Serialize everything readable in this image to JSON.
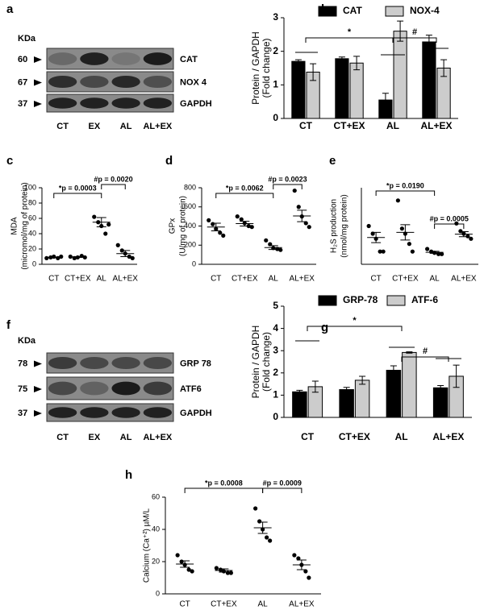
{
  "blots": [
    {
      "panel": "a",
      "kda": "KDa",
      "markers": [
        "60",
        "67",
        "37"
      ],
      "proteins": [
        "CAT",
        "NOX 4",
        "GAPDH"
      ],
      "lanes": [
        "CT",
        "EX",
        "AL",
        "AL+EX"
      ]
    },
    {
      "panel": "f",
      "kda": "KDa",
      "markers": [
        "78",
        "75",
        "37"
      ],
      "proteins": [
        "GRP 78",
        "ATF6",
        "GAPDH"
      ],
      "lanes": [
        "CT",
        "EX",
        "AL",
        "AL+EX"
      ]
    }
  ],
  "chart_data": [
    {
      "type": "bar",
      "panel": "b",
      "ylabel": [
        "Protein / GAPDH",
        "(Fold change)"
      ],
      "categories": [
        "CT",
        "CT+EX",
        "AL",
        "AL+EX"
      ],
      "series": [
        {
          "name": "CAT",
          "color": "#000000",
          "values": [
            1.7,
            1.78,
            0.55,
            2.28
          ],
          "errors": [
            0.05,
            0.05,
            0.2,
            0.2
          ]
        },
        {
          "name": "NOX-4",
          "color": "#cccccc",
          "values": [
            1.38,
            1.65,
            2.6,
            1.5
          ],
          "errors": [
            0.25,
            0.2,
            0.3,
            0.25
          ]
        }
      ],
      "ylim": [
        0,
        3
      ],
      "yticks": [
        0,
        1,
        2,
        3
      ],
      "annotations": [
        "*",
        "#"
      ]
    },
    {
      "type": "scatter",
      "panel": "c",
      "ylabel": [
        "MDA",
        "(micromol/mg of protein)"
      ],
      "categories": [
        "CT",
        "CT+EX",
        "AL",
        "AL+EX"
      ],
      "points": [
        [
          8,
          9,
          10,
          8,
          10
        ],
        [
          10,
          8,
          9,
          11,
          9
        ],
        [
          62,
          55,
          50,
          40,
          52
        ],
        [
          25,
          18,
          14,
          10,
          8
        ]
      ],
      "means": [
        9,
        9.5,
        55,
        14
      ],
      "sems": [
        0.5,
        0.5,
        6,
        4
      ],
      "ylim": [
        0,
        100
      ],
      "yticks": [
        0,
        20,
        40,
        60,
        80,
        100
      ],
      "annotations": [
        "*p = 0.0003",
        "#p = 0.0020"
      ]
    },
    {
      "type": "scatter",
      "panel": "d",
      "ylabel": [
        "GPx",
        "(U/mg of protein)"
      ],
      "categories": [
        "CT",
        "CT+EX",
        "AL",
        "AL+EX"
      ],
      "points": [
        [
          460,
          420,
          370,
          330,
          300
        ],
        [
          500,
          470,
          430,
          400,
          390
        ],
        [
          250,
          210,
          170,
          160,
          150
        ],
        [
          770,
          600,
          500,
          430,
          390
        ]
      ],
      "means": [
        390,
        425,
        175,
        505
      ],
      "sems": [
        40,
        25,
        20,
        60
      ],
      "ylim": [
        0,
        800
      ],
      "yticks": [
        0,
        200,
        400,
        600,
        800
      ],
      "annotations": [
        "*p = 0.0062",
        "#p = 0.0023"
      ]
    },
    {
      "type": "scatter",
      "panel": "e",
      "ylabel": [
        "H₂S production",
        "(nmol/mg protein)"
      ],
      "categories": [
        "CT",
        "CT+EX",
        "AL",
        "AL+EX"
      ],
      "points": [
        [
          15,
          12,
          10,
          5,
          5
        ],
        [
          25,
          14,
          12,
          8,
          5
        ],
        [
          6,
          5,
          4.5,
          4,
          4
        ],
        [
          16,
          13,
          12,
          11,
          10
        ]
      ],
      "means": [
        10.5,
        12.5,
        4.7,
        11.8
      ],
      "sems": [
        2,
        3,
        0.4,
        1
      ],
      "ylim": [
        0,
        30
      ],
      "annotations": [
        "*p = 0.0190",
        "#p = 0.0005"
      ]
    },
    {
      "type": "bar",
      "panel": "g",
      "ylabel": [
        "Protein / GAPDH",
        "(Fold change)"
      ],
      "categories": [
        "CT",
        "CT+EX",
        "AL",
        "AL+EX"
      ],
      "series": [
        {
          "name": "GRP-78",
          "color": "#000000",
          "values": [
            1.15,
            1.25,
            2.12,
            1.33
          ],
          "errors": [
            0.07,
            0.1,
            0.2,
            0.1
          ]
        },
        {
          "name": "ATF-6",
          "color": "#cccccc",
          "values": [
            1.38,
            1.67,
            2.92,
            1.85
          ],
          "errors": [
            0.25,
            0.18,
            0.03,
            0.5
          ]
        }
      ],
      "ylim": [
        0,
        5
      ],
      "yticks": [
        0,
        1,
        2,
        3,
        4,
        5
      ],
      "annotations": [
        "*",
        "#"
      ]
    },
    {
      "type": "scatter",
      "panel": "h",
      "ylabel": [
        "Calcium (Ca⁺²) µM/L"
      ],
      "categories": [
        "CT",
        "CT+EX",
        "AL",
        "AL+EX"
      ],
      "points": [
        [
          24,
          20,
          18,
          15,
          14
        ],
        [
          16,
          15,
          14,
          13,
          13
        ],
        [
          53,
          45,
          40,
          35,
          33
        ],
        [
          24,
          22,
          18,
          14,
          10
        ]
      ],
      "means": [
        18.5,
        14.5,
        41,
        18
      ],
      "sems": [
        2,
        1,
        3.5,
        3
      ],
      "ylim": [
        0,
        60
      ],
      "yticks": [
        0,
        20,
        40,
        60
      ],
      "annotations": [
        "*p = 0.0008",
        "#p = 0.0009"
      ]
    }
  ]
}
